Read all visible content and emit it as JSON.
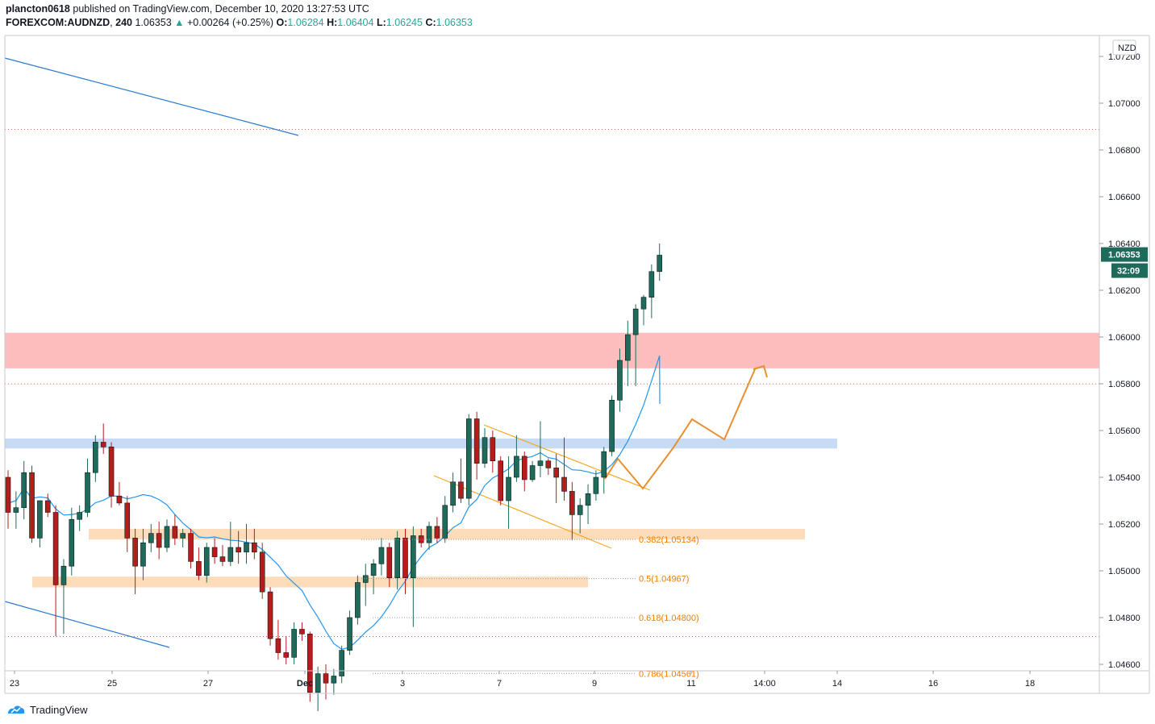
{
  "header": {
    "author": "plancton0618",
    "published_text": "published on TradingView.com, December 10, 2020 13:27:53 UTC",
    "symbol": "FOREXCOM:AUDNZD",
    "interval": "240",
    "last": "1.06353",
    "change": "+0.00264 (+0.25%)",
    "change_arrow": "▲",
    "open_label": "O:",
    "open": "1.06284",
    "high_label": "H:",
    "high": "1.06404",
    "low_label": "L:",
    "low": "1.06245",
    "close_label": "C:",
    "close": "1.06353"
  },
  "footer": {
    "brand": "TradingView"
  },
  "colors": {
    "up": "#26a69a",
    "up_body": "#1e6b5c",
    "down": "#b71c1c",
    "ma": "#2196f3",
    "resistance_zone": "#fdbdbd",
    "support_zone": "#c7dbf5",
    "fib_zone": "#fcdcb9",
    "fib_text": "#f57c00",
    "projection": "#e8902f",
    "dotted": "#d85a5a"
  },
  "chart_data": {
    "type": "candlestick",
    "title": "FOREXCOM:AUDNZD, 240",
    "currency": "NZD",
    "ylim": [
      1.0458,
      1.0728
    ],
    "y_ticks": [
      "1.07200",
      "1.07000",
      "1.06800",
      "1.06600",
      "1.06400",
      "1.06200",
      "1.06000",
      "1.05800",
      "1.05600",
      "1.05400",
      "1.05200",
      "1.05000",
      "1.04800",
      "1.04600"
    ],
    "x_ticks": [
      "23",
      "25",
      "27",
      "Dec",
      "3",
      "7",
      "9",
      "11",
      "14:00",
      "14",
      "16",
      "18"
    ],
    "current_price": "1.06353",
    "countdown": "32:09",
    "fib_levels": [
      {
        "label": "0.382(1.05134)",
        "value": 1.05134
      },
      {
        "label": "0.5(1.04967)",
        "value": 1.04967
      },
      {
        "label": "0.618(1.04800)",
        "value": 1.048
      },
      {
        "label": "0.786(1.04561)",
        "value": 1.04561
      }
    ],
    "zones": [
      {
        "name": "resistance",
        "from": 1.05866,
        "to": 1.06018
      },
      {
        "name": "support",
        "from": 1.05523,
        "to": 1.05566
      },
      {
        "name": "fib-0382",
        "from": 1.05134,
        "to": 1.05179
      },
      {
        "name": "fib-05",
        "from": 1.04929,
        "to": 1.04975
      }
    ],
    "dotted_levels": [
      1.06888,
      1.05799,
      1.04719
    ],
    "candles": [
      [
        1.054,
        1.0543,
        1.0518,
        1.0525
      ],
      [
        1.0525,
        1.0534,
        1.0518,
        1.0527
      ],
      [
        1.0527,
        1.0547,
        1.0522,
        1.0542
      ],
      [
        1.0542,
        1.0545,
        1.0512,
        1.0514
      ],
      [
        1.0514,
        1.0529,
        1.051,
        1.053
      ],
      [
        1.053,
        1.0533,
        1.0523,
        1.0525
      ],
      [
        1.0525,
        1.0528,
        1.0472,
        1.0494
      ],
      [
        1.0494,
        1.0505,
        1.0473,
        1.0502
      ],
      [
        1.0502,
        1.0527,
        1.0498,
        1.0522
      ],
      [
        1.0522,
        1.0528,
        1.0517,
        1.0525
      ],
      [
        1.0525,
        1.0548,
        1.0523,
        1.0542
      ],
      [
        1.0542,
        1.0558,
        1.0538,
        1.0555
      ],
      [
        1.0555,
        1.0563,
        1.055,
        1.0553
      ],
      [
        1.0553,
        1.0555,
        1.0527,
        1.0532
      ],
      [
        1.0532,
        1.0538,
        1.0528,
        1.0529
      ],
      [
        1.0529,
        1.0532,
        1.0508,
        1.0514
      ],
      [
        1.0514,
        1.0518,
        1.049,
        1.0502
      ],
      [
        1.0502,
        1.0518,
        1.0496,
        1.0512
      ],
      [
        1.0512,
        1.052,
        1.0508,
        1.0516
      ],
      [
        1.0516,
        1.0521,
        1.0505,
        1.051
      ],
      [
        1.051,
        1.0522,
        1.0508,
        1.0519
      ],
      [
        1.0519,
        1.0524,
        1.0511,
        1.0514
      ],
      [
        1.0514,
        1.0518,
        1.051,
        1.0516
      ],
      [
        1.0516,
        1.0518,
        1.0501,
        1.0504
      ],
      [
        1.0504,
        1.051,
        1.0496,
        1.0498
      ],
      [
        1.0498,
        1.0512,
        1.0495,
        1.051
      ],
      [
        1.051,
        1.0514,
        1.0503,
        1.0506
      ],
      [
        1.0506,
        1.0511,
        1.0502,
        1.0504
      ],
      [
        1.0504,
        1.0521,
        1.0502,
        1.051
      ],
      [
        1.051,
        1.0517,
        1.0503,
        1.0508
      ],
      [
        1.0508,
        1.052,
        1.0503,
        1.0512
      ],
      [
        1.0512,
        1.0518,
        1.0505,
        1.0508
      ],
      [
        1.0508,
        1.0512,
        1.0488,
        1.0491
      ],
      [
        1.0491,
        1.0493,
        1.0468,
        1.0471
      ],
      [
        1.0471,
        1.0479,
        1.0462,
        1.0465
      ],
      [
        1.0465,
        1.0472,
        1.046,
        1.0463
      ],
      [
        1.0463,
        1.0478,
        1.046,
        1.0475
      ],
      [
        1.0475,
        1.0478,
        1.047,
        1.0473
      ],
      [
        1.0473,
        1.0474,
        1.0444,
        1.0448
      ],
      [
        1.0448,
        1.0459,
        1.044,
        1.0456
      ],
      [
        1.0456,
        1.046,
        1.0445,
        1.0452
      ],
      [
        1.0452,
        1.0458,
        1.0447,
        1.0455
      ],
      [
        1.0455,
        1.0468,
        1.0452,
        1.0466
      ],
      [
        1.0466,
        1.0483,
        1.0464,
        1.048
      ],
      [
        1.048,
        1.0498,
        1.0477,
        1.0495
      ],
      [
        1.0495,
        1.0503,
        1.0485,
        1.0498
      ],
      [
        1.0498,
        1.0505,
        1.049,
        1.0503
      ],
      [
        1.0503,
        1.0514,
        1.0498,
        1.051
      ],
      [
        1.051,
        1.0512,
        1.0493,
        1.0497
      ],
      [
        1.0497,
        1.0517,
        1.0492,
        1.0514
      ],
      [
        1.0514,
        1.0518,
        1.049,
        1.0497
      ],
      [
        1.0497,
        1.0519,
        1.0476,
        1.0515
      ],
      [
        1.0515,
        1.0518,
        1.051,
        1.0512
      ],
      [
        1.0512,
        1.0521,
        1.0509,
        1.0519
      ],
      [
        1.0519,
        1.0523,
        1.0512,
        1.0514
      ],
      [
        1.0514,
        1.0532,
        1.0512,
        1.0528
      ],
      [
        1.0528,
        1.0542,
        1.0525,
        1.0538
      ],
      [
        1.0538,
        1.0548,
        1.0529,
        1.0531
      ],
      [
        1.0531,
        1.0567,
        1.0528,
        1.0565
      ],
      [
        1.0565,
        1.0568,
        1.0539,
        1.0546
      ],
      [
        1.0546,
        1.0561,
        1.0544,
        1.0557
      ],
      [
        1.0557,
        1.056,
        1.0542,
        1.0547
      ],
      [
        1.0547,
        1.0549,
        1.0528,
        1.053
      ],
      [
        1.053,
        1.0549,
        1.0518,
        1.054
      ],
      [
        1.054,
        1.0558,
        1.0538,
        1.0549
      ],
      [
        1.0549,
        1.0551,
        1.0534,
        1.0539
      ],
      [
        1.0539,
        1.0547,
        1.0538,
        1.0545
      ],
      [
        1.0545,
        1.0564,
        1.054,
        1.0547
      ],
      [
        1.0547,
        1.0548,
        1.0541,
        1.0544
      ],
      [
        1.0544,
        1.055,
        1.0529,
        1.054
      ],
      [
        1.054,
        1.0557,
        1.053,
        1.0534
      ],
      [
        1.0534,
        1.0538,
        1.0513,
        1.0524
      ],
      [
        1.0524,
        1.0531,
        1.0516,
        1.0528
      ],
      [
        1.0528,
        1.0537,
        1.052,
        1.0533
      ],
      [
        1.0533,
        1.0543,
        1.053,
        1.054
      ],
      [
        1.054,
        1.0553,
        1.0533,
        1.0551
      ],
      [
        1.0551,
        1.0575,
        1.0549,
        1.0573
      ],
      [
        1.0573,
        1.0595,
        1.0568,
        1.059
      ],
      [
        1.059,
        1.0607,
        1.0579,
        1.0601
      ],
      [
        1.0601,
        1.0614,
        1.0579,
        1.0612
      ],
      [
        1.0612,
        1.0618,
        1.0605,
        1.0617
      ],
      [
        1.0617,
        1.0631,
        1.0608,
        1.0628
      ],
      [
        1.0628,
        1.064,
        1.0624,
        1.0635
      ]
    ]
  }
}
